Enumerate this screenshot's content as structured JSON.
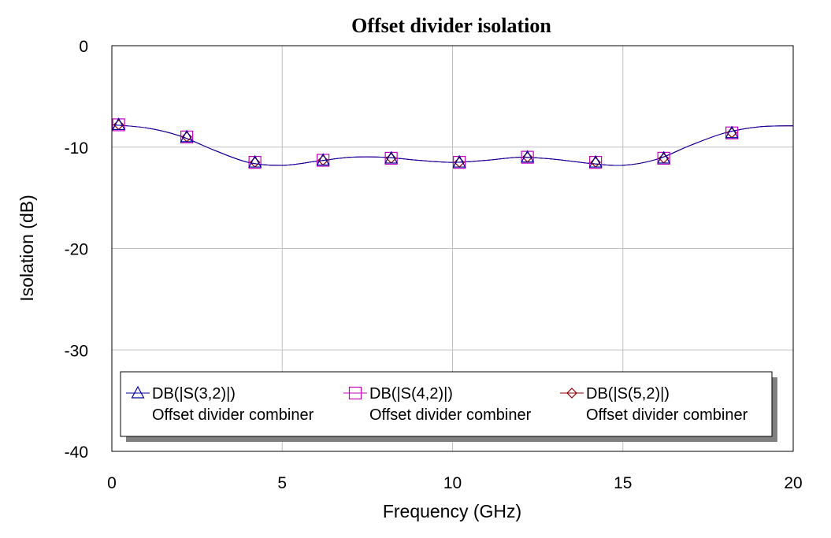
{
  "chart_data": {
    "type": "line",
    "title": "Offset divider  isolation",
    "xlabel": "Frequency (GHz)",
    "ylabel": "Isolation (dB)",
    "xlim": [
      0,
      20
    ],
    "ylim": [
      -40,
      0
    ],
    "xticks": [
      "0",
      "5",
      "10",
      "15",
      "20"
    ],
    "yticks": [
      "0",
      "-10",
      "-20",
      "-30",
      "-40"
    ],
    "grid": true,
    "legend_position": "bottom",
    "x": [
      0,
      1,
      2,
      3,
      4,
      5,
      6,
      7,
      8,
      9,
      10,
      11,
      12,
      13,
      14,
      15,
      16,
      17,
      18,
      19,
      20
    ],
    "series": [
      {
        "name": "DB(|S(3,2)|)",
        "subtitle": "Offset divider combiner",
        "marker": "triangle",
        "color": "#00009c",
        "values": [
          -7.8,
          -8.1,
          -8.9,
          -10.3,
          -11.5,
          -11.8,
          -11.4,
          -11.0,
          -11.0,
          -11.3,
          -11.5,
          -11.3,
          -11.0,
          -11.2,
          -11.6,
          -11.8,
          -11.2,
          -9.8,
          -8.6,
          -8.0,
          -7.9
        ]
      },
      {
        "name": "DB(|S(4,2)|)",
        "subtitle": "Offset divider combiner",
        "marker": "square",
        "color": "#c000c0",
        "values": [
          -7.8,
          -8.1,
          -8.9,
          -10.3,
          -11.5,
          -11.8,
          -11.4,
          -11.0,
          -11.0,
          -11.3,
          -11.5,
          -11.3,
          -11.0,
          -11.2,
          -11.6,
          -11.8,
          -11.2,
          -9.8,
          -8.6,
          -8.0,
          -7.9
        ]
      },
      {
        "name": "DB(|S(5,2)|)",
        "subtitle": "Offset divider combiner",
        "marker": "diamond",
        "color": "#8b0000",
        "values": [
          -7.8,
          -8.1,
          -8.9,
          -10.3,
          -11.5,
          -11.8,
          -11.4,
          -11.0,
          -11.0,
          -11.3,
          -11.5,
          -11.3,
          -11.0,
          -11.2,
          -11.6,
          -11.8,
          -11.2,
          -9.8,
          -8.6,
          -8.0,
          -7.9
        ]
      }
    ],
    "marker_x": [
      0.2,
      2.2,
      4.2,
      6.2,
      8.2,
      10.2,
      12.2,
      14.2,
      16.2,
      18.2
    ],
    "marker_y": [
      -7.8,
      -9.0,
      -11.5,
      -11.3,
      -11.1,
      -11.5,
      -11.0,
      -11.5,
      -11.1,
      -8.6
    ]
  }
}
